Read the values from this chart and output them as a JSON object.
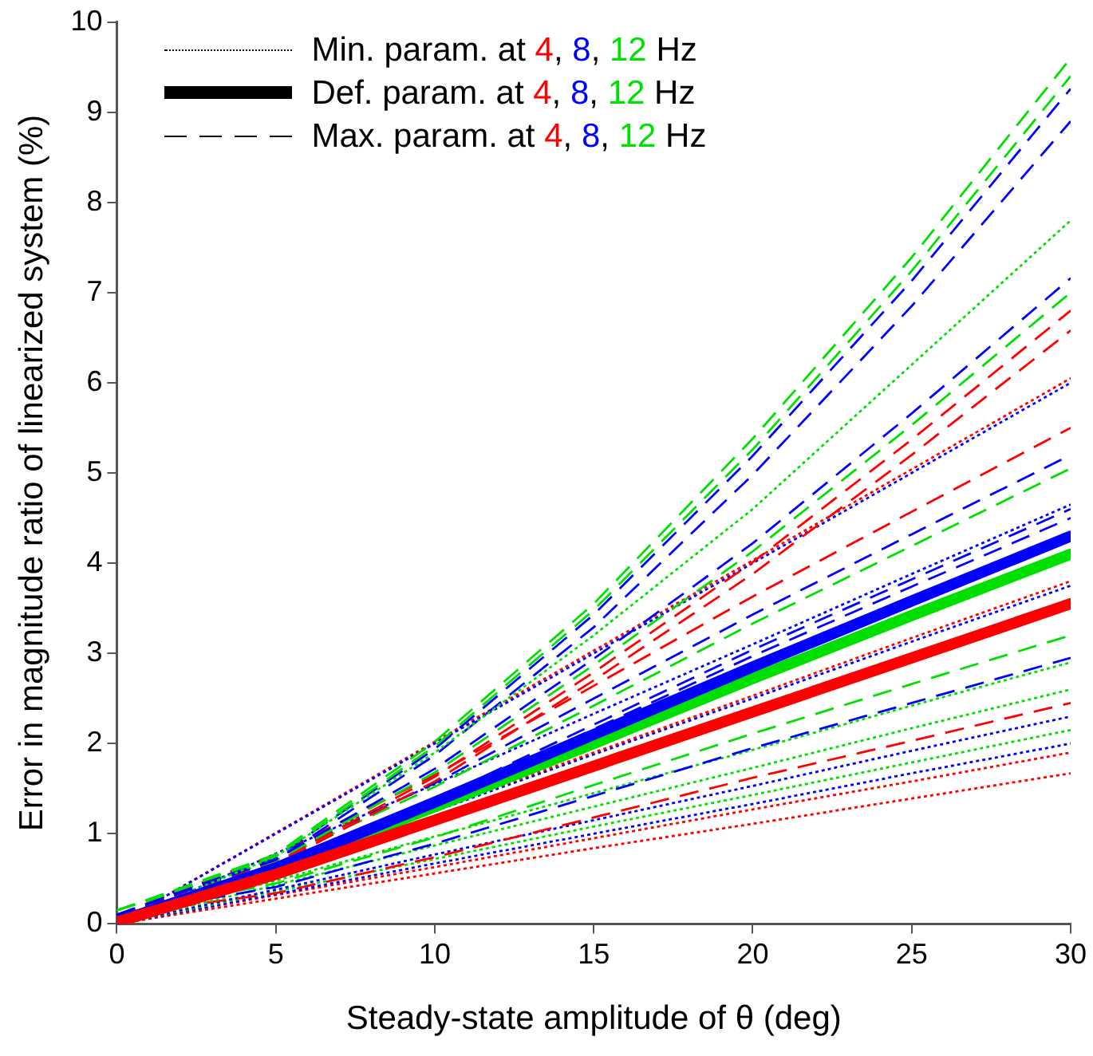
{
  "chart_data": {
    "type": "line",
    "xlabel": "Steady-state amplitude of θ (deg)",
    "ylabel": "Error in magnitude ratio of linearized system (%)",
    "annotations": [
      "Min. param. at 4, 8, 12 Hz",
      "Def. param. at 4, 8, 12 Hz",
      "Max. param. at 4, 8, 12 Hz"
    ],
    "grid": false,
    "marker": "none",
    "x": [
      0,
      5,
      10,
      15,
      20,
      25,
      30
    ],
    "xlim": [
      0,
      30
    ],
    "xticks": [
      0,
      5,
      10,
      15,
      20,
      25,
      30
    ],
    "ylim": [
      0,
      10
    ],
    "yticks": [
      0,
      1,
      2,
      3,
      4,
      5,
      6,
      7,
      8,
      9,
      10
    ],
    "series": [
      {
        "color": "#00e000",
        "line_style": "dotted",
        "values": [
          0.02,
          0.75,
          1.9,
          3.2,
          4.6,
          6.2,
          7.8
        ]
      },
      {
        "color": "#ff0000",
        "line_style": "solid",
        "values": [
          0.02,
          0.55,
          1.15,
          1.75,
          2.35,
          2.95,
          3.55
        ]
      },
      {
        "color": "#0000ff",
        "line_style": "solid",
        "values": [
          0.02,
          0.62,
          1.35,
          2.1,
          2.85,
          3.58,
          4.3
        ]
      },
      {
        "color": "#00e000",
        "line_style": "solid",
        "values": [
          0.02,
          0.6,
          1.3,
          2.0,
          2.72,
          3.42,
          4.1
        ]
      },
      {
        "color": "#00e000",
        "line_style": "dashed",
        "values": [
          0.15,
          0.77,
          2.02,
          3.55,
          5.38,
          7.39,
          9.6
        ]
      },
      {
        "color": "#00e000",
        "line_style": "dashed",
        "values": [
          0.15,
          0.75,
          1.97,
          3.48,
          5.26,
          7.24,
          9.4
        ]
      },
      {
        "color": "#0000ff",
        "line_style": "dashed",
        "values": [
          0.1,
          0.74,
          1.94,
          3.43,
          5.19,
          7.13,
          9.26
        ]
      },
      {
        "color": "#0000ff",
        "line_style": "dashed",
        "values": [
          0.1,
          0.71,
          1.87,
          3.29,
          4.98,
          6.85,
          8.9
        ]
      },
      {
        "color": "#0000ff",
        "line_style": "dashed",
        "values": [
          0.1,
          0.72,
          1.72,
          2.94,
          4.22,
          5.66,
          7.16
        ]
      },
      {
        "color": "#00e000",
        "line_style": "dashed",
        "values": [
          0.15,
          0.7,
          1.68,
          2.87,
          4.13,
          5.53,
          7.0
        ]
      },
      {
        "color": "#ff0000",
        "line_style": "dashed",
        "values": [
          0.1,
          0.68,
          1.63,
          2.79,
          4.01,
          5.37,
          6.8
        ]
      },
      {
        "color": "#ff0000",
        "line_style": "dashed",
        "values": [
          0.1,
          0.66,
          1.58,
          2.7,
          3.88,
          5.2,
          6.58
        ]
      },
      {
        "color": "#0000ff",
        "line_style": "dotted",
        "values": [
          0,
          1,
          2,
          3,
          4,
          5,
          6
        ]
      },
      {
        "color": "#ff0000",
        "line_style": "dotted",
        "values": [
          0,
          1.01,
          2.02,
          3.03,
          4.03,
          5.04,
          6.05
        ]
      },
      {
        "color": "#ff0000",
        "line_style": "dashed",
        "values": [
          0.1,
          0.77,
          1.65,
          2.64,
          3.63,
          4.57,
          5.5
        ]
      },
      {
        "color": "#0000ff",
        "line_style": "dashed",
        "values": [
          0.1,
          0.73,
          1.56,
          2.5,
          3.43,
          4.32,
          5.2
        ]
      },
      {
        "color": "#00e000",
        "line_style": "dashed",
        "values": [
          0.15,
          0.71,
          1.52,
          2.42,
          3.33,
          4.19,
          5.05
        ]
      },
      {
        "color": "#0000ff",
        "line_style": "dashed",
        "values": [
          0.1,
          0.64,
          1.38,
          2.21,
          3.04,
          3.82,
          4.6
        ]
      },
      {
        "color": "#0000ff",
        "line_style": "dashed",
        "values": [
          0.1,
          0.63,
          1.35,
          2.16,
          2.97,
          3.74,
          4.5
        ]
      },
      {
        "color": "#0000ff",
        "line_style": "dotted",
        "values": [
          0,
          0.78,
          1.55,
          2.33,
          3.1,
          3.88,
          4.65
        ]
      },
      {
        "color": "#ff0000",
        "line_style": "dotted",
        "values": [
          0,
          0.63,
          1.27,
          1.9,
          2.53,
          3.17,
          3.8
        ]
      },
      {
        "color": "#0000ff",
        "line_style": "dotted",
        "values": [
          0,
          0.63,
          1.25,
          1.88,
          2.5,
          3.13,
          3.75
        ]
      },
      {
        "color": "#00e000",
        "line_style": "dashed",
        "values": [
          0.1,
          0.45,
          0.96,
          1.54,
          2.11,
          2.66,
          3.2
        ]
      },
      {
        "color": "#0000ff",
        "line_style": "dashed",
        "values": [
          0.1,
          0.41,
          0.89,
          1.42,
          1.95,
          2.45,
          2.95
        ]
      },
      {
        "color": "#00e000",
        "line_style": "dotted",
        "values": [
          0.02,
          0.48,
          0.97,
          1.45,
          1.93,
          2.42,
          2.9
        ]
      },
      {
        "color": "#00e000",
        "line_style": "dotted",
        "values": [
          0,
          0.43,
          0.87,
          1.3,
          1.73,
          2.17,
          2.6
        ]
      },
      {
        "color": "#ff0000",
        "line_style": "dashed",
        "values": [
          0.1,
          0.34,
          0.74,
          1.18,
          1.62,
          2.03,
          2.45
        ]
      },
      {
        "color": "#0000ff",
        "line_style": "dotted",
        "values": [
          0,
          0.38,
          0.77,
          1.15,
          1.53,
          1.92,
          2.3
        ]
      },
      {
        "color": "#00e000",
        "line_style": "dotted",
        "values": [
          0,
          0.36,
          0.72,
          1.08,
          1.43,
          1.79,
          2.15
        ]
      },
      {
        "color": "#0000ff",
        "line_style": "dotted",
        "values": [
          0,
          0.33,
          0.67,
          1.0,
          1.33,
          1.67,
          2.0
        ]
      },
      {
        "color": "#ff0000",
        "line_style": "dotted",
        "values": [
          0,
          0.32,
          0.63,
          0.95,
          1.27,
          1.58,
          1.9
        ]
      },
      {
        "color": "#ff0000",
        "line_style": "dotted",
        "values": [
          0,
          0.28,
          0.56,
          0.84,
          1.11,
          1.39,
          1.67
        ]
      }
    ]
  }
}
